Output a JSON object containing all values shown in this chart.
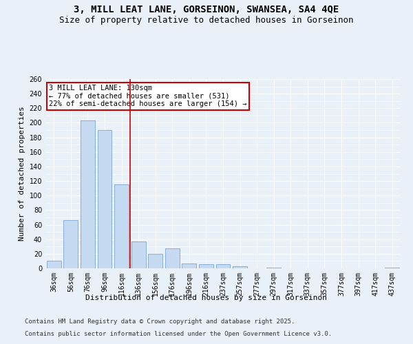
{
  "title_line1": "3, MILL LEAT LANE, GORSEINON, SWANSEA, SA4 4QE",
  "title_line2": "Size of property relative to detached houses in Gorseinon",
  "xlabel": "Distribution of detached houses by size in Gorseinon",
  "ylabel": "Number of detached properties",
  "categories": [
    "36sqm",
    "56sqm",
    "76sqm",
    "96sqm",
    "116sqm",
    "136sqm",
    "156sqm",
    "176sqm",
    "196sqm",
    "216sqm",
    "237sqm",
    "257sqm",
    "277sqm",
    "297sqm",
    "317sqm",
    "337sqm",
    "357sqm",
    "377sqm",
    "397sqm",
    "417sqm",
    "437sqm"
  ],
  "values": [
    10,
    66,
    203,
    190,
    115,
    37,
    20,
    27,
    7,
    6,
    6,
    3,
    0,
    1,
    0,
    0,
    0,
    0,
    0,
    0,
    1
  ],
  "bar_color": "#c5d9f1",
  "bar_edge_color": "#6699cc",
  "reference_line_x": 4.5,
  "reference_line_color": "#cc0000",
  "annotation_text": "3 MILL LEAT LANE: 130sqm\n← 77% of detached houses are smaller (531)\n22% of semi-detached houses are larger (154) →",
  "annotation_box_color": "#cc0000",
  "background_color": "#eaf0f8",
  "plot_bg_color": "#eaf0f8",
  "ylim": [
    0,
    260
  ],
  "yticks": [
    0,
    20,
    40,
    60,
    80,
    100,
    120,
    140,
    160,
    180,
    200,
    220,
    240,
    260
  ],
  "footer_line1": "Contains HM Land Registry data © Crown copyright and database right 2025.",
  "footer_line2": "Contains public sector information licensed under the Open Government Licence v3.0.",
  "title_fontsize": 10,
  "subtitle_fontsize": 9,
  "axis_label_fontsize": 8,
  "tick_fontsize": 7,
  "annotation_fontsize": 7.5,
  "footer_fontsize": 6.5
}
